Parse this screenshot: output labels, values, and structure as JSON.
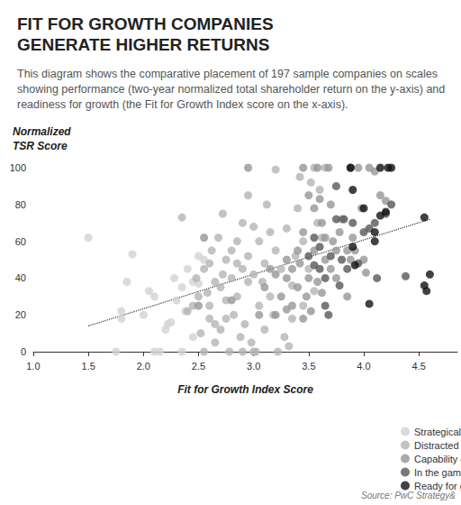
{
  "chart_data": {
    "type": "scatter",
    "title": "FIT FOR GROWTH COMPANIES\nGENERATE HIGHER RETURNS",
    "subtitle": "This diagram shows the comparative placement of 197 sample companies on scales showing performance (two-year normalized total shareholder return on the y-axis) and readiness for growth (the Fit for Growth Index score on the x-axis).",
    "y_label": "Normalized\nTSR Score",
    "x_label": "Fit for Growth Index Score",
    "source": "Source: PwC Strategy&",
    "xlim": [
      1.0,
      4.85
    ],
    "xticks": [
      {
        "value": 1.0,
        "label": "1.0"
      },
      {
        "value": 1.5,
        "label": "1.5"
      },
      {
        "value": 2.0,
        "label": "2.0"
      },
      {
        "value": 2.5,
        "label": "2.5"
      },
      {
        "value": 3.0,
        "label": "3.0"
      },
      {
        "value": 3.5,
        "label": "3.5"
      },
      {
        "value": 4.0,
        "label": "4.0"
      },
      {
        "value": 4.5,
        "label": "4.5"
      }
    ],
    "ylim": [
      0,
      100
    ],
    "yticks": [
      0,
      20,
      40,
      60,
      80,
      100
    ],
    "grid": false,
    "legend": "bottom-right",
    "marker": "circle",
    "series": [
      {
        "name": "Strategically adrift",
        "color": "#d2d2d2",
        "values": [
          [
            1.5,
            62
          ],
          [
            1.75,
            0
          ],
          [
            1.8,
            22
          ],
          [
            1.8,
            18
          ],
          [
            1.85,
            38
          ],
          [
            1.9,
            53
          ],
          [
            2.05,
            33
          ],
          [
            2.1,
            30
          ],
          [
            2.1,
            0
          ],
          [
            2.15,
            0
          ],
          [
            2.2,
            12
          ],
          [
            2.22,
            15
          ],
          [
            2.25,
            16
          ],
          [
            2.35,
            35
          ],
          [
            2.35,
            0
          ],
          [
            2.38,
            22
          ],
          [
            2.45,
            38
          ],
          [
            2.5,
            37
          ],
          [
            2.55,
            50
          ],
          [
            2.4,
            45
          ],
          [
            2.3,
            28
          ],
          [
            2.0,
            20
          ],
          [
            2.45,
            8
          ],
          [
            2.28,
            40
          ],
          [
            2.5,
            52
          ]
        ]
      },
      {
        "name": "Distracted",
        "color": "#b4b4b4",
        "values": [
          [
            2.35,
            73
          ],
          [
            2.4,
            22
          ],
          [
            2.45,
            25
          ],
          [
            2.5,
            30
          ],
          [
            2.55,
            45
          ],
          [
            2.6,
            25
          ],
          [
            2.6,
            18
          ],
          [
            2.6,
            48
          ],
          [
            2.65,
            15
          ],
          [
            2.65,
            5
          ],
          [
            2.7,
            35
          ],
          [
            2.7,
            12
          ],
          [
            2.72,
            75
          ],
          [
            2.75,
            50
          ],
          [
            2.75,
            28
          ],
          [
            2.8,
            55
          ],
          [
            2.8,
            40
          ],
          [
            2.82,
            20
          ],
          [
            2.85,
            60
          ],
          [
            2.85,
            30
          ],
          [
            2.88,
            8
          ],
          [
            2.9,
            70
          ],
          [
            2.9,
            45
          ],
          [
            2.92,
            15
          ],
          [
            2.95,
            85
          ],
          [
            2.95,
            38
          ],
          [
            2.98,
            5
          ],
          [
            3.0,
            68
          ],
          [
            3.0,
            42
          ],
          [
            3.02,
            0
          ],
          [
            3.05,
            60
          ],
          [
            3.05,
            25
          ],
          [
            3.1,
            48
          ],
          [
            3.1,
            12
          ],
          [
            3.12,
            80
          ],
          [
            3.15,
            30
          ],
          [
            3.2,
            99
          ],
          [
            3.2,
            55
          ],
          [
            3.22,
            0
          ],
          [
            3.25,
            45
          ],
          [
            3.28,
            8
          ],
          [
            3.3,
            67
          ],
          [
            3.32,
            3
          ],
          [
            3.35,
            36
          ],
          [
            3.38,
            52
          ],
          [
            3.4,
            78
          ],
          [
            3.42,
            95
          ],
          [
            3.45,
            25
          ],
          [
            3.5,
            45
          ],
          [
            3.52,
            92
          ],
          [
            3.55,
            100
          ],
          [
            3.6,
            88
          ],
          [
            3.58,
            70
          ],
          [
            3.62,
            62
          ],
          [
            2.55,
            0
          ],
          [
            2.65,
            38
          ],
          [
            2.78,
            0
          ],
          [
            2.9,
            0
          ],
          [
            3.0,
            0
          ],
          [
            2.75,
            18
          ],
          [
            2.85,
            48
          ],
          [
            3.08,
            38
          ],
          [
            3.18,
            20
          ],
          [
            2.68,
            62
          ],
          [
            2.52,
            10
          ],
          [
            2.48,
            40
          ],
          [
            2.62,
            55
          ],
          [
            3.35,
            18
          ],
          [
            3.45,
            60
          ],
          [
            3.55,
            33
          ],
          [
            3.65,
            100
          ],
          [
            2.95,
            52
          ],
          [
            3.15,
            65
          ],
          [
            2.72,
            42
          ],
          [
            2.58,
            32
          ]
        ]
      },
      {
        "name": "Capability constrained",
        "color": "#969696",
        "values": [
          [
            3.2,
            20
          ],
          [
            3.25,
            30
          ],
          [
            3.3,
            40
          ],
          [
            3.3,
            23
          ],
          [
            3.35,
            45
          ],
          [
            3.4,
            55
          ],
          [
            3.4,
            35
          ],
          [
            3.45,
            100
          ],
          [
            3.45,
            65
          ],
          [
            3.5,
            85
          ],
          [
            3.5,
            40
          ],
          [
            3.55,
            78
          ],
          [
            3.58,
            100
          ],
          [
            3.6,
            83
          ],
          [
            3.62,
            70
          ],
          [
            3.65,
            50
          ],
          [
            3.68,
            100
          ],
          [
            3.7,
            80
          ],
          [
            3.72,
            60
          ],
          [
            3.75,
            40
          ],
          [
            3.78,
            65
          ],
          [
            3.8,
            72
          ],
          [
            3.85,
            55
          ],
          [
            3.9,
            62
          ],
          [
            3.95,
            100
          ],
          [
            4.0,
            50
          ],
          [
            4.05,
            100
          ],
          [
            4.1,
            98
          ],
          [
            4.15,
            85
          ],
          [
            4.2,
            82
          ],
          [
            3.15,
            45
          ],
          [
            3.2,
            42
          ],
          [
            3.35,
            25
          ],
          [
            3.42,
            48
          ],
          [
            3.48,
            30
          ],
          [
            3.52,
            22
          ],
          [
            3.58,
            38
          ],
          [
            3.62,
            32
          ],
          [
            3.7,
            45
          ],
          [
            3.85,
            30
          ],
          [
            3.92,
            55
          ],
          [
            3.98,
            78
          ],
          [
            4.02,
            43
          ],
          [
            3.55,
            55
          ],
          [
            3.65,
            62
          ],
          [
            3.75,
            55
          ],
          [
            3.88,
            50
          ],
          [
            3.1,
            35
          ],
          [
            3.3,
            50
          ],
          [
            3.45,
            18
          ],
          [
            2.5,
            25
          ],
          [
            2.55,
            62
          ],
          [
            2.8,
            28
          ],
          [
            2.95,
            100
          ],
          [
            3.05,
            20
          ]
        ]
      },
      {
        "name": "In the game",
        "color": "#575757",
        "values": [
          [
            3.55,
            62
          ],
          [
            3.5,
            52
          ],
          [
            3.55,
            47
          ],
          [
            3.6,
            57
          ],
          [
            3.65,
            40
          ],
          [
            3.65,
            25
          ],
          [
            3.68,
            20
          ],
          [
            3.75,
            90
          ],
          [
            3.75,
            72
          ],
          [
            3.8,
            50
          ],
          [
            3.82,
            72
          ],
          [
            3.85,
            45
          ],
          [
            3.88,
            100
          ],
          [
            3.9,
            70
          ],
          [
            3.95,
            48
          ],
          [
            4.0,
            65
          ],
          [
            4.05,
            67
          ],
          [
            4.1,
            70
          ],
          [
            4.12,
            40
          ],
          [
            4.2,
            75
          ],
          [
            4.38,
            41
          ],
          [
            4.25,
            80
          ],
          [
            3.78,
            36
          ],
          [
            3.6,
            45
          ],
          [
            3.7,
            52
          ]
        ]
      },
      {
        "name": "Ready for growth",
        "color": "#111111",
        "values": [
          [
            3.88,
            100
          ],
          [
            4.15,
            100
          ],
          [
            4.22,
            100
          ],
          [
            4.25,
            100
          ],
          [
            3.9,
            88
          ],
          [
            4.0,
            78
          ],
          [
            4.15,
            74
          ],
          [
            4.2,
            76
          ],
          [
            4.55,
            73
          ],
          [
            4.1,
            60
          ],
          [
            4.05,
            26
          ],
          [
            4.55,
            36
          ],
          [
            4.57,
            33
          ],
          [
            4.6,
            42
          ],
          [
            3.92,
            47
          ],
          [
            3.9,
            57
          ],
          [
            4.1,
            65
          ]
        ]
      }
    ],
    "trend": {
      "x": [
        1.5,
        4.6
      ],
      "values": [
        14,
        72
      ],
      "color": "#333333",
      "line_style": "dotted"
    }
  }
}
